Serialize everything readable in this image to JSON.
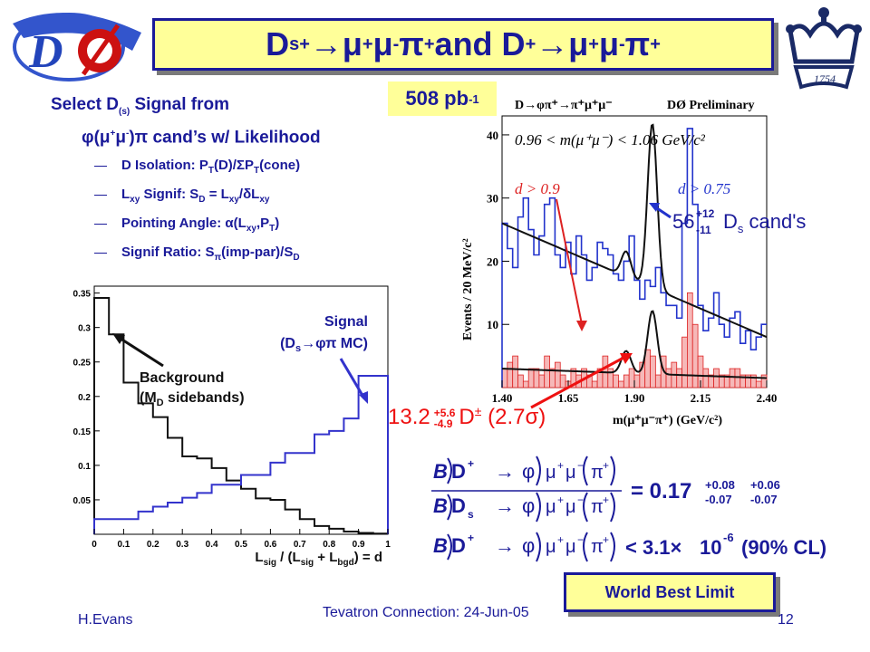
{
  "slide": {
    "title": {
      "prefix": "D",
      "sub_s": "s",
      "sup_plus": "+",
      "arrow": " → ",
      "mu": "μ",
      "pi": "π",
      "and": " and D",
      "plus": "+",
      "minus": "-"
    },
    "luminosity": {
      "value": "508 pb",
      "exp": "-1"
    },
    "select": {
      "line1": "Select D",
      "line1_sub": "(s)",
      "line1_tail": " Signal from",
      "line2": "φ(μ",
      "line2_tail": ")π cand’s w/ Likelihood"
    },
    "criteria": [
      {
        "a": "D Isolation: P",
        "b": "T",
        "c": "(D)/ΣP",
        "d": "T",
        "e": "(cone)"
      },
      {
        "a": "L",
        "b": "xy",
        "c": " Signif: S",
        "d": "D",
        "e": " = L",
        "f": "xy",
        "g": "/δL",
        "h": "xy"
      },
      {
        "a": "Pointing Angle: α(L",
        "b": "xy",
        "c": ",P",
        "d": "T",
        "e": ")"
      },
      {
        "a": "Signif Ratio: S",
        "b": "π",
        "c": "(imp-par)/S",
        "d": "D"
      }
    ],
    "footer": {
      "author": "H.Evans",
      "conference": "Tevatron Connection: 24-Jun-05",
      "page": "12"
    },
    "world_best_limit": "World Best Limit"
  },
  "chart_data": [
    {
      "type": "step-histogram",
      "xlabel": "L",
      "xlabel_sub1": "sig",
      "xlabel_mid": " / (L",
      "xlabel_sub2": "sig",
      "xlabel_mid2": " + L",
      "xlabel_sub3": "bgd",
      "xlabel_tail": ") = d",
      "xlim": [
        0,
        1
      ],
      "ylim": [
        0,
        0.36
      ],
      "xticks": [
        "0",
        "0.1",
        "0.2",
        "0.3",
        "0.4",
        "0.5",
        "0.6",
        "0.7",
        "0.8",
        "0.9",
        "1"
      ],
      "yticks": [
        "0.05",
        "0.1",
        "0.15",
        "0.2",
        "0.25",
        "0.3",
        "0.35"
      ],
      "bins": [
        0,
        0.05,
        0.1,
        0.15,
        0.2,
        0.25,
        0.3,
        0.35,
        0.4,
        0.45,
        0.5,
        0.55,
        0.6,
        0.65,
        0.7,
        0.75,
        0.8,
        0.85,
        0.9,
        0.95,
        1.0
      ],
      "series": [
        {
          "name": "Background",
          "values": [
            0.343,
            0.29,
            0.22,
            0.19,
            0.17,
            0.14,
            0.113,
            0.11,
            0.096,
            0.078,
            0.066,
            0.052,
            0.05,
            0.036,
            0.022,
            0.012,
            0.008,
            0.004,
            0.002,
            0.001
          ],
          "color": "#111111"
        },
        {
          "name": "Signal",
          "values": [
            0.022,
            0.022,
            0.022,
            0.033,
            0.04,
            0.046,
            0.053,
            0.06,
            0.072,
            0.072,
            0.086,
            0.086,
            0.104,
            0.118,
            0.118,
            0.145,
            0.15,
            0.168,
            0.23,
            0.23
          ],
          "color": "#3333cc"
        }
      ],
      "annotations": {
        "bg_l1": "Background",
        "bg_l2a": "(M",
        "bg_l2sub": "D",
        "bg_l2b": " sidebands)",
        "sig_l1": "Signal",
        "sig_l2a": "(D",
        "sig_l2sub": "s",
        "sig_l2b": "→φπ MC)"
      }
    },
    {
      "type": "histogram-with-fit",
      "title": "D→φπ⁺→π⁺μ⁺μ⁻",
      "preliminary": "DØ Preliminary",
      "cut": "0.96 < m(μ⁺μ⁻) < 1.06 GeV/c²",
      "xlabel": "m(μ⁺μ⁻π⁺) (GeV/c²)",
      "ylabel": "Events / 20 MeV/c²",
      "xlim": [
        1.4,
        2.4
      ],
      "ylim": [
        0,
        43
      ],
      "xticks": [
        "1.40",
        "1.65",
        "1.90",
        "2.15",
        "2.40"
      ],
      "yticks": [
        "10",
        "20",
        "30",
        "40"
      ],
      "bins_start": 1.4,
      "bin_width": 0.02,
      "series": [
        {
          "name": "d > 0.75",
          "color": "#2233cc",
          "values": [
            26,
            22,
            19,
            27,
            30,
            25,
            21,
            24,
            29,
            30,
            21,
            19,
            23,
            18,
            24,
            21,
            17,
            19,
            23,
            22,
            21,
            18,
            17,
            20,
            24,
            17,
            14,
            17,
            16,
            19,
            15,
            13,
            13,
            11,
            26,
            41,
            29,
            13,
            9,
            11,
            15,
            10,
            8,
            11,
            12,
            7,
            9,
            6,
            8,
            10
          ]
        },
        {
          "name": "d > 0.9",
          "color": "#dd2222",
          "values": [
            3,
            4,
            5,
            2,
            1,
            3,
            3,
            2,
            5,
            3,
            4,
            2,
            1,
            3,
            2,
            3,
            2,
            1,
            3,
            5,
            3,
            2,
            1,
            2,
            3,
            2,
            4,
            6,
            5,
            2,
            5,
            3,
            4,
            3,
            8,
            15,
            10,
            5,
            3,
            2,
            3,
            2,
            2,
            3,
            3,
            2,
            2,
            2,
            1,
            2
          ]
        }
      ],
      "labels": {
        "red": "d > 0.9",
        "blue": "d > 0.75"
      },
      "ds_yield": {
        "val": "56",
        "up": "+12",
        "dn": "-11",
        "tail": "D",
        "tail_sub": "s",
        "tail2": " cand's"
      },
      "d_yield": {
        "val": "13.2",
        "up": "+5.6",
        "dn": "-4.9",
        "tail": "D",
        "tail_sup": "±",
        "tail2": " (2.7σ)"
      }
    }
  ],
  "equations": {
    "B": "B",
    "D": "D",
    "Ds": "D",
    "s": "s",
    "plus": "+",
    "minus": "−",
    "arrow": "→",
    "phi": "φ",
    "mu": "μ",
    "pi": "π",
    "ratio": "= 0.17",
    "e1_up": "+0.08",
    "e1_dn": "-0.07",
    "e2_up": "+0.06",
    "e2_dn": "-0.07",
    "limit": "< 3.1×",
    "limit_exp": "10",
    "limit_exp_sup": "-6",
    "cl": "(90% CL)"
  }
}
